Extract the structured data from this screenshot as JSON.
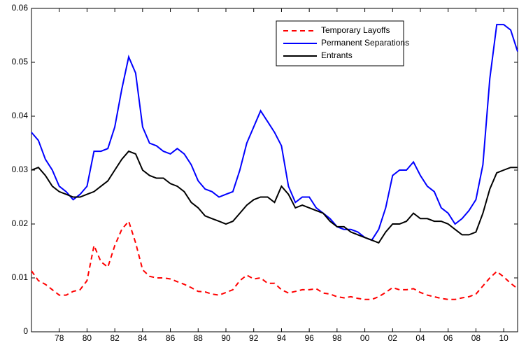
{
  "chart_data": {
    "type": "line",
    "x": [
      1976,
      1976.5,
      1977,
      1977.5,
      1978,
      1978.5,
      1979,
      1979.5,
      1980,
      1980.5,
      1981,
      1981.5,
      1982,
      1982.5,
      1983,
      1983.5,
      1984,
      1984.5,
      1985,
      1985.5,
      1986,
      1986.5,
      1987,
      1987.5,
      1988,
      1988.5,
      1989,
      1989.5,
      1990,
      1990.5,
      1991,
      1991.5,
      1992,
      1992.5,
      1993,
      1993.5,
      1994,
      1994.5,
      1995,
      1995.5,
      1996,
      1996.5,
      1997,
      1997.5,
      1998,
      1998.5,
      1999,
      1999.5,
      2000,
      2000.5,
      2001,
      2001.5,
      2002,
      2002.5,
      2003,
      2003.5,
      2004,
      2004.5,
      2005,
      2005.5,
      2006,
      2006.5,
      2007,
      2007.5,
      2008,
      2008.5,
      2009,
      2009.5,
      2010,
      2010.5,
      2011
    ],
    "series": [
      {
        "name": "Temporary Layoffs",
        "color": "#ff0000",
        "linestyle": "dashed",
        "values": [
          0.0113,
          0.0095,
          0.0088,
          0.0078,
          0.0068,
          0.0068,
          0.0075,
          0.0078,
          0.0095,
          0.016,
          0.013,
          0.012,
          0.016,
          0.019,
          0.0205,
          0.0165,
          0.0115,
          0.0103,
          0.01,
          0.01,
          0.0098,
          0.0093,
          0.0088,
          0.0082,
          0.0075,
          0.0074,
          0.007,
          0.0068,
          0.0073,
          0.0078,
          0.0095,
          0.0105,
          0.0098,
          0.01,
          0.009,
          0.009,
          0.0078,
          0.0072,
          0.0075,
          0.0078,
          0.0078,
          0.008,
          0.0072,
          0.007,
          0.0065,
          0.0063,
          0.0065,
          0.0062,
          0.006,
          0.006,
          0.0065,
          0.0073,
          0.0082,
          0.0078,
          0.0078,
          0.008,
          0.0073,
          0.0068,
          0.0065,
          0.0062,
          0.006,
          0.006,
          0.0063,
          0.0065,
          0.007,
          0.0085,
          0.01,
          0.0112,
          0.0102,
          0.009,
          0.008
        ]
      },
      {
        "name": "Permanent Separations",
        "color": "#0000ff",
        "linestyle": "solid",
        "values": [
          0.037,
          0.0355,
          0.032,
          0.03,
          0.027,
          0.026,
          0.0245,
          0.0255,
          0.027,
          0.0335,
          0.0335,
          0.034,
          0.038,
          0.045,
          0.051,
          0.048,
          0.038,
          0.035,
          0.0345,
          0.0335,
          0.033,
          0.034,
          0.033,
          0.031,
          0.028,
          0.0265,
          0.026,
          0.025,
          0.0255,
          0.026,
          0.03,
          0.035,
          0.038,
          0.041,
          0.039,
          0.037,
          0.0345,
          0.027,
          0.024,
          0.025,
          0.025,
          0.023,
          0.022,
          0.021,
          0.0195,
          0.019,
          0.019,
          0.0185,
          0.0175,
          0.017,
          0.019,
          0.023,
          0.029,
          0.03,
          0.03,
          0.0315,
          0.029,
          0.027,
          0.026,
          0.023,
          0.022,
          0.02,
          0.021,
          0.0225,
          0.0245,
          0.031,
          0.047,
          0.057,
          0.057,
          0.056,
          0.052
        ]
      },
      {
        "name": "Entrants",
        "color": "#000000",
        "linestyle": "solid",
        "values": [
          0.03,
          0.0305,
          0.029,
          0.027,
          0.026,
          0.0255,
          0.025,
          0.025,
          0.0255,
          0.026,
          0.027,
          0.028,
          0.03,
          0.032,
          0.0335,
          0.033,
          0.03,
          0.029,
          0.0285,
          0.0285,
          0.0275,
          0.027,
          0.026,
          0.024,
          0.023,
          0.0215,
          0.021,
          0.0205,
          0.02,
          0.0205,
          0.022,
          0.0235,
          0.0245,
          0.025,
          0.025,
          0.024,
          0.027,
          0.0255,
          0.023,
          0.0235,
          0.023,
          0.0225,
          0.022,
          0.0205,
          0.0195,
          0.0195,
          0.0185,
          0.018,
          0.0175,
          0.017,
          0.0165,
          0.0185,
          0.02,
          0.02,
          0.0205,
          0.022,
          0.021,
          0.021,
          0.0205,
          0.0205,
          0.02,
          0.019,
          0.018,
          0.018,
          0.0185,
          0.022,
          0.0265,
          0.0295,
          0.03,
          0.0305,
          0.0305
        ]
      }
    ],
    "xlim": [
      1976,
      2011
    ],
    "xticks": [
      {
        "value": 1978,
        "label": "78"
      },
      {
        "value": 1980,
        "label": "80"
      },
      {
        "value": 1982,
        "label": "82"
      },
      {
        "value": 1984,
        "label": "84"
      },
      {
        "value": 1986,
        "label": "86"
      },
      {
        "value": 1988,
        "label": "88"
      },
      {
        "value": 1990,
        "label": "90"
      },
      {
        "value": 1992,
        "label": "92"
      },
      {
        "value": 1994,
        "label": "94"
      },
      {
        "value": 1996,
        "label": "96"
      },
      {
        "value": 1998,
        "label": "98"
      },
      {
        "value": 2000,
        "label": "00"
      },
      {
        "value": 2002,
        "label": "02"
      },
      {
        "value": 2004,
        "label": "04"
      },
      {
        "value": 2006,
        "label": "06"
      },
      {
        "value": 2008,
        "label": "08"
      },
      {
        "value": 2010,
        "label": "10"
      }
    ],
    "ylim": [
      0,
      0.06
    ],
    "yticks": [
      0,
      0.01,
      0.02,
      0.03,
      0.04,
      0.05,
      0.06
    ],
    "grid": false,
    "legend": "upper right"
  }
}
